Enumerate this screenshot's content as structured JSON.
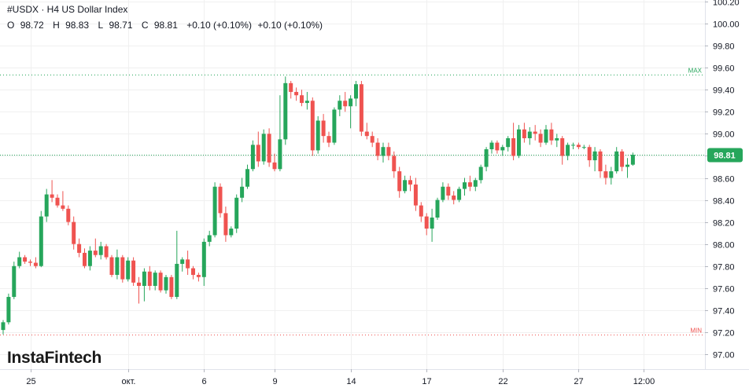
{
  "header": {
    "title": "#USDX · H4 US Dollar Index",
    "ohlc": {
      "o_label": "O",
      "o": "98.72",
      "h_label": "H",
      "h": "98.83",
      "l_label": "L",
      "l": "98.71",
      "c_label": "C",
      "c": "98.81",
      "change": "+0.10 (+0.10%)",
      "change2": "+0.10 (+0.10%)"
    }
  },
  "logo": "InstaFintech",
  "colors": {
    "up": "#26a65b",
    "down": "#ef5350",
    "grid": "#f0f0f0",
    "current": "#26a65b",
    "max": "#26a65b",
    "min": "#ef5350"
  },
  "chart_data": {
    "type": "candlestick",
    "title": "#USDX · H4 US Dollar Index",
    "ylim": [
      96.85,
      100.25
    ],
    "y_ticks": [
      "97.00",
      "97.20",
      "97.40",
      "97.60",
      "97.80",
      "98.00",
      "98.20",
      "98.40",
      "98.60",
      "98.80",
      "99.00",
      "99.20",
      "99.40",
      "99.60",
      "99.80",
      "100.00",
      "100.20"
    ],
    "x_labels": [
      {
        "label": "25",
        "index": 5
      },
      {
        "label": "окт.",
        "index": 23
      },
      {
        "label": "6",
        "index": 37
      },
      {
        "label": "9",
        "index": 50
      },
      {
        "label": "14",
        "index": 64
      },
      {
        "label": "17",
        "index": 78
      },
      {
        "label": "22",
        "index": 92
      },
      {
        "label": "27",
        "index": 106
      },
      {
        "label": "12:00",
        "index": 118
      }
    ],
    "current_price": {
      "value": 98.81,
      "label": "98.81"
    },
    "max_line": {
      "value": 99.54,
      "label": "MAX"
    },
    "min_line": {
      "value": 97.18,
      "label": "MIN"
    },
    "series_ohlc": [
      [
        97.22,
        97.31,
        97.18,
        97.29
      ],
      [
        97.29,
        97.55,
        97.27,
        97.52
      ],
      [
        97.52,
        97.84,
        97.5,
        97.8
      ],
      [
        97.8,
        97.93,
        97.78,
        97.88
      ],
      [
        97.88,
        97.9,
        97.82,
        97.84
      ],
      [
        97.84,
        97.86,
        97.8,
        97.83
      ],
      [
        97.83,
        97.88,
        97.78,
        97.8
      ],
      [
        97.8,
        98.3,
        97.79,
        98.25
      ],
      [
        98.25,
        98.5,
        98.2,
        98.45
      ],
      [
        98.45,
        98.58,
        98.38,
        98.42
      ],
      [
        98.42,
        98.45,
        98.33,
        98.35
      ],
      [
        98.35,
        98.48,
        98.3,
        98.32
      ],
      [
        98.32,
        98.35,
        98.17,
        98.2
      ],
      [
        98.2,
        98.25,
        97.95,
        98.0
      ],
      [
        98.0,
        98.05,
        97.88,
        97.92
      ],
      [
        97.92,
        97.96,
        97.78,
        97.8
      ],
      [
        97.8,
        97.98,
        97.76,
        97.94
      ],
      [
        97.94,
        98.05,
        97.88,
        97.9
      ],
      [
        97.9,
        98.02,
        97.86,
        97.98
      ],
      [
        97.98,
        98.0,
        97.86,
        97.88
      ],
      [
        97.88,
        97.9,
        97.7,
        97.72
      ],
      [
        97.72,
        97.95,
        97.68,
        97.88
      ],
      [
        97.88,
        97.9,
        97.65,
        97.68
      ],
      [
        97.68,
        97.88,
        97.66,
        97.85
      ],
      [
        97.85,
        97.88,
        97.62,
        97.65
      ],
      [
        97.65,
        97.7,
        97.46,
        97.62
      ],
      [
        97.62,
        97.78,
        97.48,
        97.75
      ],
      [
        97.75,
        97.8,
        97.58,
        97.62
      ],
      [
        97.62,
        97.76,
        97.58,
        97.74
      ],
      [
        97.74,
        97.76,
        97.56,
        97.58
      ],
      [
        97.58,
        97.72,
        97.55,
        97.7
      ],
      [
        97.7,
        97.72,
        97.5,
        97.52
      ],
      [
        97.52,
        98.12,
        97.5,
        97.82
      ],
      [
        97.82,
        97.88,
        97.75,
        97.86
      ],
      [
        97.86,
        97.94,
        97.72,
        97.78
      ],
      [
        97.78,
        97.8,
        97.68,
        97.72
      ],
      [
        97.72,
        97.74,
        97.66,
        97.7
      ],
      [
        97.7,
        98.05,
        97.62,
        98.02
      ],
      [
        98.02,
        98.12,
        97.98,
        98.08
      ],
      [
        98.08,
        98.56,
        98.06,
        98.52
      ],
      [
        98.52,
        98.55,
        98.24,
        98.28
      ],
      [
        98.28,
        98.34,
        98.02,
        98.08
      ],
      [
        98.08,
        98.16,
        98.06,
        98.14
      ],
      [
        98.14,
        98.45,
        98.1,
        98.42
      ],
      [
        98.42,
        98.6,
        98.38,
        98.52
      ],
      [
        98.52,
        98.72,
        98.5,
        98.68
      ],
      [
        98.68,
        98.94,
        98.66,
        98.9
      ],
      [
        98.9,
        99.02,
        98.7,
        98.75
      ],
      [
        98.75,
        99.04,
        98.72,
        99.0
      ],
      [
        99.0,
        99.05,
        98.7,
        98.74
      ],
      [
        98.74,
        98.82,
        98.66,
        98.68
      ],
      [
        98.68,
        99.35,
        98.66,
        98.95
      ],
      [
        98.95,
        99.52,
        98.9,
        99.46
      ],
      [
        99.46,
        99.48,
        99.32,
        99.38
      ],
      [
        99.38,
        99.42,
        99.3,
        99.35
      ],
      [
        99.35,
        99.4,
        99.25,
        99.28
      ],
      [
        99.28,
        99.38,
        99.22,
        99.3
      ],
      [
        99.3,
        99.33,
        98.8,
        98.85
      ],
      [
        98.85,
        99.16,
        98.82,
        99.12
      ],
      [
        99.12,
        99.18,
        98.92,
        98.98
      ],
      [
        98.98,
        99.02,
        98.88,
        98.92
      ],
      [
        98.92,
        99.24,
        98.9,
        99.22
      ],
      [
        99.22,
        99.35,
        99.16,
        99.3
      ],
      [
        99.3,
        99.38,
        99.2,
        99.25
      ],
      [
        99.25,
        99.35,
        99.05,
        99.32
      ],
      [
        99.32,
        99.48,
        99.25,
        99.45
      ],
      [
        99.45,
        99.48,
        98.98,
        99.02
      ],
      [
        99.02,
        99.1,
        98.95,
        98.98
      ],
      [
        98.98,
        99.02,
        98.88,
        98.92
      ],
      [
        98.92,
        98.96,
        98.76,
        98.8
      ],
      [
        98.8,
        98.92,
        98.74,
        98.88
      ],
      [
        98.88,
        98.92,
        98.76,
        98.8
      ],
      [
        98.8,
        98.84,
        98.6,
        98.66
      ],
      [
        98.66,
        98.7,
        98.42,
        98.48
      ],
      [
        98.48,
        98.62,
        98.46,
        98.58
      ],
      [
        98.58,
        98.62,
        98.48,
        98.54
      ],
      [
        98.54,
        98.6,
        98.3,
        98.35
      ],
      [
        98.35,
        98.38,
        98.2,
        98.25
      ],
      [
        98.25,
        98.28,
        98.08,
        98.14
      ],
      [
        98.14,
        98.32,
        98.02,
        98.24
      ],
      [
        98.24,
        98.42,
        98.22,
        98.4
      ],
      [
        98.4,
        98.56,
        98.38,
        98.52
      ],
      [
        98.52,
        98.55,
        98.4,
        98.44
      ],
      [
        98.44,
        98.48,
        98.36,
        98.4
      ],
      [
        98.4,
        98.52,
        98.38,
        98.5
      ],
      [
        98.5,
        98.6,
        98.44,
        98.56
      ],
      [
        98.56,
        98.62,
        98.48,
        98.52
      ],
      [
        98.52,
        98.6,
        98.48,
        98.58
      ],
      [
        98.58,
        98.72,
        98.55,
        98.7
      ],
      [
        98.7,
        98.88,
        98.66,
        98.86
      ],
      [
        98.86,
        98.94,
        98.82,
        98.92
      ],
      [
        98.92,
        98.94,
        98.82,
        98.85
      ],
      [
        98.85,
        98.9,
        98.8,
        98.88
      ],
      [
        98.88,
        98.98,
        98.84,
        98.96
      ],
      [
        98.96,
        99.1,
        98.76,
        98.8
      ],
      [
        98.8,
        99.08,
        98.78,
        99.04
      ],
      [
        99.04,
        99.1,
        98.92,
        98.96
      ],
      [
        98.96,
        99.06,
        98.9,
        99.02
      ],
      [
        99.02,
        99.08,
        98.94,
        99.0
      ],
      [
        99.0,
        99.04,
        98.88,
        98.92
      ],
      [
        98.92,
        99.08,
        98.9,
        99.04
      ],
      [
        99.04,
        99.1,
        98.9,
        98.94
      ],
      [
        98.94,
        99.0,
        98.88,
        98.96
      ],
      [
        98.96,
        98.98,
        98.72,
        98.8
      ],
      [
        98.8,
        98.92,
        98.76,
        98.9
      ],
      [
        98.9,
        98.92,
        98.86,
        98.9
      ],
      [
        98.9,
        98.92,
        98.86,
        98.88
      ],
      [
        98.88,
        98.9,
        98.86,
        98.88
      ],
      [
        98.88,
        98.9,
        98.7,
        98.76
      ],
      [
        98.76,
        98.88,
        98.66,
        98.84
      ],
      [
        98.84,
        98.86,
        98.6,
        98.66
      ],
      [
        98.66,
        98.72,
        98.54,
        98.6
      ],
      [
        98.6,
        98.7,
        98.54,
        98.66
      ],
      [
        98.66,
        98.88,
        98.64,
        98.84
      ],
      [
        98.84,
        98.86,
        98.66,
        98.7
      ],
      [
        98.7,
        98.78,
        98.6,
        98.72
      ],
      [
        98.72,
        98.83,
        98.71,
        98.81
      ]
    ]
  }
}
